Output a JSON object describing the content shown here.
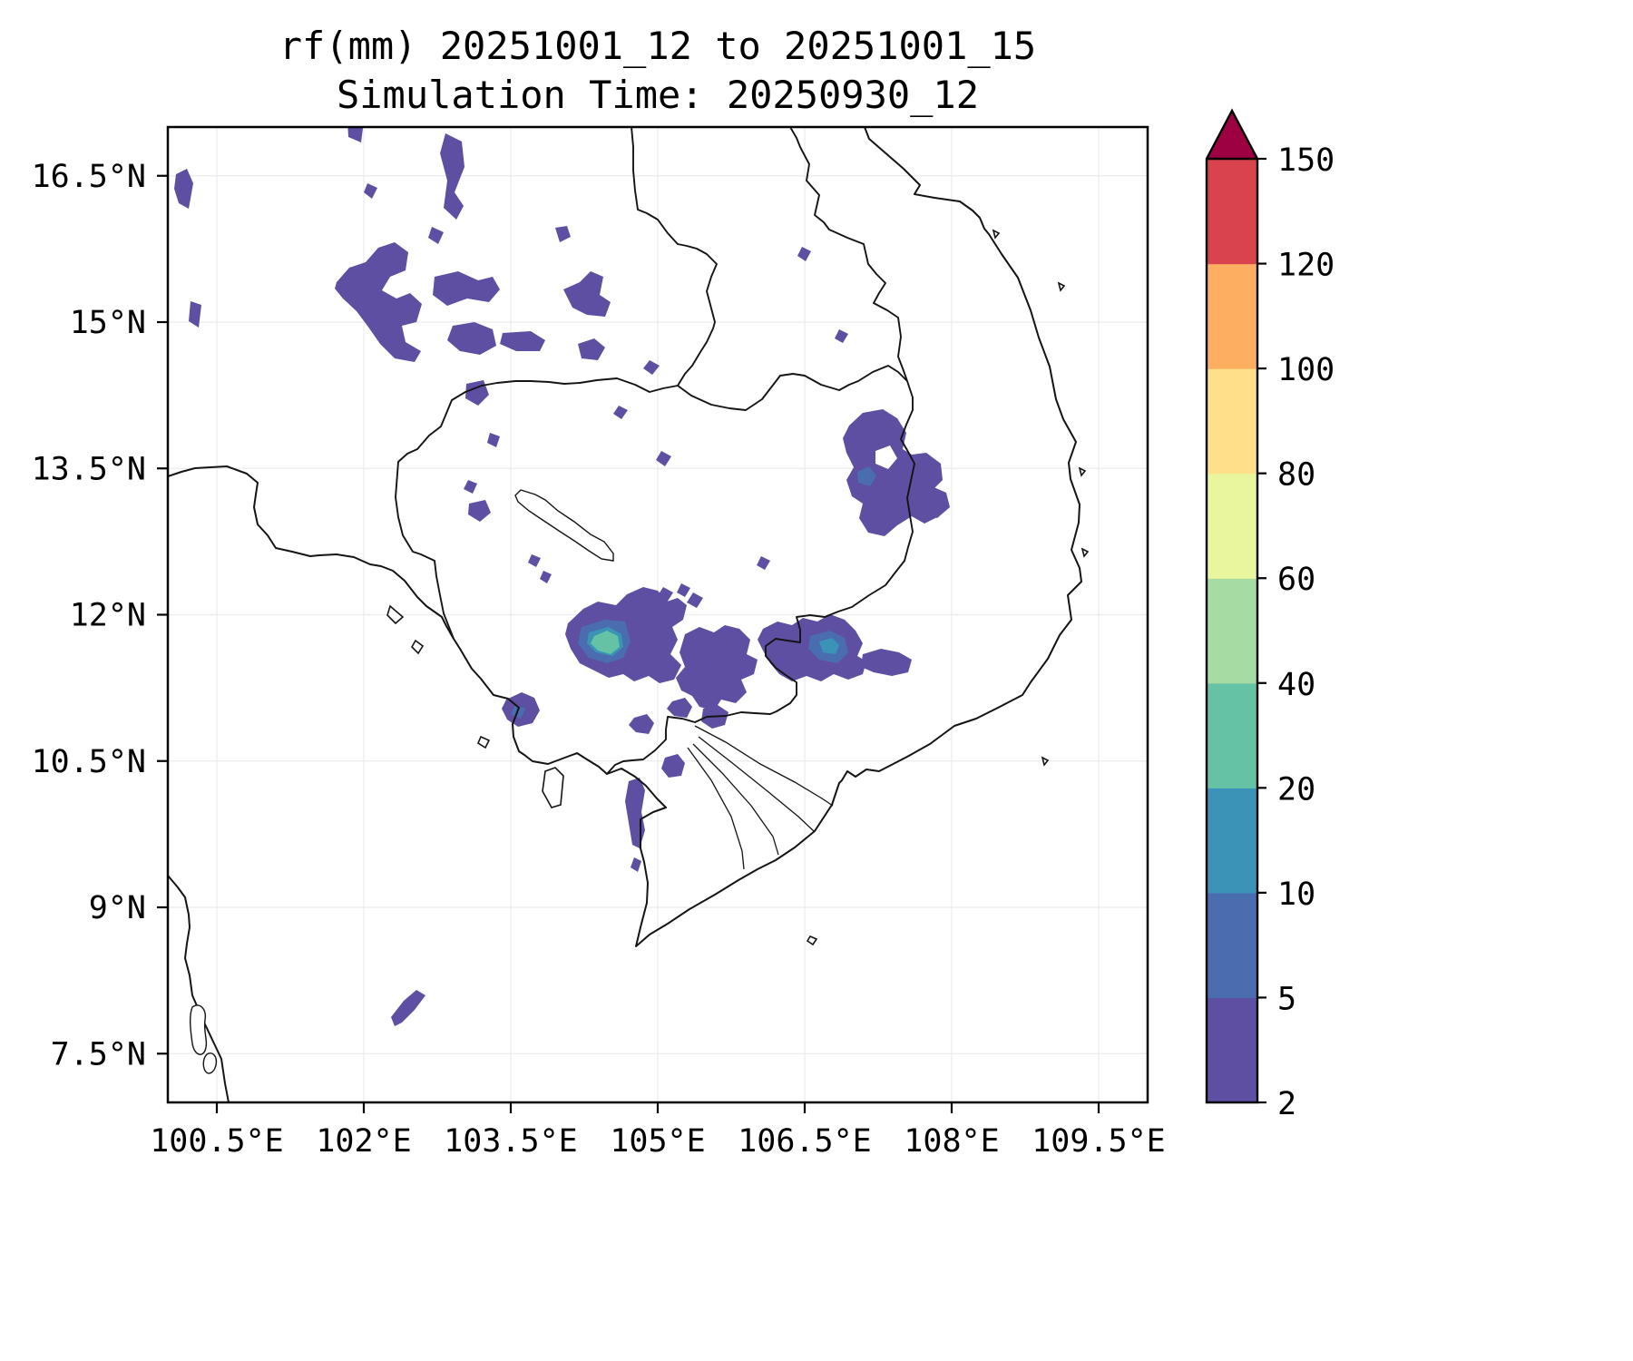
{
  "chart": {
    "title": "rf(mm) 20251001_12 to 20251001_15",
    "subtitle": "Simulation Time: 20250930_12"
  },
  "chart_data": {
    "type": "heatmap",
    "title": "rf(mm) 20251001_12 to 20251001_15",
    "subtitle": "Simulation Time: 20250930_12",
    "variable": "rainfall accumulation",
    "units": "mm",
    "valid_period": {
      "start": "20251001_12",
      "end": "20251001_15"
    },
    "simulation_time": "20250930_12",
    "map_extent": {
      "lon": [
        100,
        110
      ],
      "lat": [
        7,
        17
      ]
    },
    "grid": "faint gray at tick positions",
    "legend_position": "right colorbar",
    "x_axis": {
      "label_type": "longitude",
      "range": [
        100,
        110
      ],
      "ticks": [
        {
          "label": "100.5°E",
          "value": 100.5
        },
        {
          "label": "102°E",
          "value": 102
        },
        {
          "label": "103.5°E",
          "value": 103.5
        },
        {
          "label": "105°E",
          "value": 105
        },
        {
          "label": "106.5°E",
          "value": 106.5
        },
        {
          "label": "108°E",
          "value": 108
        },
        {
          "label": "109.5°E",
          "value": 109.5
        }
      ]
    },
    "y_axis": {
      "label_type": "latitude",
      "range": [
        7,
        17
      ],
      "ticks": [
        {
          "label": "16.5°N",
          "value": 16.5
        },
        {
          "label": "15°N",
          "value": 15
        },
        {
          "label": "13.5°N",
          "value": 13.5
        },
        {
          "label": "12°N",
          "value": 12
        },
        {
          "label": "10.5°N",
          "value": 10.5
        },
        {
          "label": "9°N",
          "value": 9
        },
        {
          "label": "7.5°N",
          "value": 7.5
        }
      ]
    },
    "colorbar": {
      "orientation": "vertical",
      "extend": "max",
      "levels": [
        2,
        5,
        10,
        20,
        40,
        60,
        80,
        100,
        120,
        150
      ],
      "colors": [
        "#5e4fa2",
        "#4a6db0",
        "#3c93b8",
        "#66c2a5",
        "#a6dba4",
        "#e9f69e",
        "#fee08b",
        "#fdae61",
        "#d8434e"
      ],
      "over_color": "#9e0142"
    },
    "rain_cells": [
      {
        "lon": 100.15,
        "lat": 16.4,
        "range_mm": "2-5"
      },
      {
        "lon": 100.25,
        "lat": 15.1,
        "range_mm": "2-5"
      },
      {
        "lon": 101.9,
        "lat": 16.95,
        "range_mm": "2-5"
      },
      {
        "lon": 102.9,
        "lat": 16.3,
        "range_mm": "2-5",
        "note": "small N-S streak"
      },
      {
        "lon": 102.1,
        "lat": 15.25,
        "range_mm": "2-5",
        "note": "scattered band over NE Thailand"
      },
      {
        "lon": 103.1,
        "lat": 15.3,
        "range_mm": "2-5"
      },
      {
        "lon": 103.65,
        "lat": 14.8,
        "range_mm": "2-5"
      },
      {
        "lon": 104.3,
        "lat": 15.3,
        "range_mm": "2-5"
      },
      {
        "lon": 104.3,
        "lat": 14.7,
        "range_mm": "2-5"
      },
      {
        "lon": 104.95,
        "lat": 14.55,
        "range_mm": "2-5"
      },
      {
        "lon": 103.15,
        "lat": 14.25,
        "range_mm": "2-5"
      },
      {
        "lon": 105.05,
        "lat": 13.6,
        "range_mm": "2-5"
      },
      {
        "lon": 106.9,
        "lat": 14.85,
        "range_mm": "2-5"
      },
      {
        "lon": 107.4,
        "lat": 13.45,
        "range_mm": "2-10",
        "note": "large blob over central highlands / S Laos border"
      },
      {
        "lon": 106.1,
        "lat": 12.5,
        "range_mm": "2-5"
      },
      {
        "lon": 104.65,
        "lat": 11.75,
        "range_mm": "2-40",
        "note": "west lobe of main cluster, teal core 20-40 mm"
      },
      {
        "lon": 105.6,
        "lat": 11.45,
        "range_mm": "2-5",
        "note": "main cluster center"
      },
      {
        "lon": 106.6,
        "lat": 11.6,
        "range_mm": "2-20",
        "note": "east lobe of main cluster, blue core"
      },
      {
        "lon": 107.3,
        "lat": 11.5,
        "range_mm": "2-5"
      },
      {
        "lon": 103.6,
        "lat": 11.0,
        "range_mm": "2-10",
        "note": "coastal patch near Sihanoukville"
      },
      {
        "lon": 105.15,
        "lat": 10.45,
        "range_mm": "2-5"
      },
      {
        "lon": 104.8,
        "lat": 9.95,
        "range_mm": "2-5",
        "note": "N-S coastal streak"
      },
      {
        "lon": 102.45,
        "lat": 7.95,
        "range_mm": "2-5",
        "note": "isolated streak over Gulf of Thailand"
      }
    ]
  }
}
